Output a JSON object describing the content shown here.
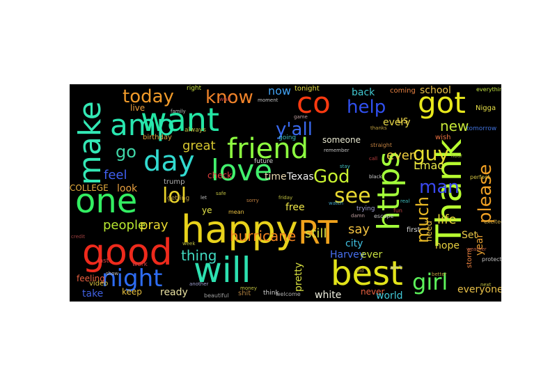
{
  "wordcloud": {
    "background": "#000000",
    "page_background": "#ffffff",
    "words": [
      {
        "text": "happy",
        "color": "#e8d21b"
      },
      {
        "text": "will",
        "color": "#2de0b0"
      },
      {
        "text": "best",
        "color": "#e2e31a"
      },
      {
        "text": "want",
        "color": "#23e6a4"
      },
      {
        "text": "love",
        "color": "#42f06d"
      },
      {
        "text": "RT",
        "color": "#f0a21c"
      },
      {
        "text": "https",
        "color": "#a3ff3a"
      },
      {
        "text": "Thank",
        "color": "#b8ff30"
      },
      {
        "text": "friend",
        "color": "#8dff40"
      },
      {
        "text": "good",
        "color": "#ee2a1c"
      },
      {
        "text": "one",
        "color": "#33ee62"
      },
      {
        "text": "amp",
        "color": "#29e6b0"
      },
      {
        "text": "make",
        "color": "#33e8b5"
      },
      {
        "text": "day",
        "color": "#32dad0"
      },
      {
        "text": "co",
        "color": "#ff3a10"
      },
      {
        "text": "got",
        "color": "#e8e81c"
      },
      {
        "text": "night",
        "color": "#2e6cf2"
      },
      {
        "text": "help",
        "color": "#3050f0"
      },
      {
        "text": "girl",
        "color": "#5cf25a"
      },
      {
        "text": "know",
        "color": "#f0832a"
      },
      {
        "text": "today",
        "color": "#f09a2a"
      },
      {
        "text": "lol",
        "color": "#e8d22a"
      },
      {
        "text": "see",
        "color": "#e8d830"
      },
      {
        "text": "God",
        "color": "#c8f230"
      },
      {
        "text": "man",
        "color": "#3a48f0"
      },
      {
        "text": "please",
        "color": "#f0a024"
      },
      {
        "text": "hurricane",
        "color": "#f08220"
      },
      {
        "text": "much",
        "color": "#e8b824"
      },
      {
        "text": "y'all",
        "color": "#3a6af0"
      },
      {
        "text": "guy",
        "color": "#e8e030"
      },
      {
        "text": "go",
        "color": "#40d8a8"
      },
      {
        "text": "new",
        "color": "#c8e838"
      },
      {
        "text": "great",
        "color": "#d8c830"
      },
      {
        "text": "people",
        "color": "#b8e830"
      },
      {
        "text": "pray",
        "color": "#e8d830"
      },
      {
        "text": "thing",
        "color": "#40d8c0"
      },
      {
        "text": "feel",
        "color": "#4060f0"
      },
      {
        "text": "life",
        "color": "#e8d838"
      },
      {
        "text": "still",
        "color": "#d8e040"
      },
      {
        "text": "even",
        "color": "#f0d040"
      },
      {
        "text": "Lmao",
        "color": "#e8e848"
      },
      {
        "text": "say",
        "color": "#f0c040"
      },
      {
        "text": "year",
        "color": "#e8a030"
      },
      {
        "text": "now",
        "color": "#40a0f0"
      },
      {
        "text": "Harvey",
        "color": "#4870f0"
      },
      {
        "text": "city",
        "color": "#40c0e0"
      },
      {
        "text": "ever",
        "color": "#c8e040"
      },
      {
        "text": "pretty",
        "color": "#d8e040"
      },
      {
        "text": "hope",
        "color": "#e8d040"
      },
      {
        "text": "need",
        "color": "#e8c040"
      },
      {
        "text": "Set",
        "color": "#e8c848"
      },
      {
        "text": "every",
        "color": "#e8d848"
      },
      {
        "text": "someone",
        "color": "#e8e8d0"
      },
      {
        "text": "back",
        "color": "#40c8d0"
      },
      {
        "text": "time",
        "color": "#e8d8b0"
      },
      {
        "text": "Texas",
        "color": "#f0f0f0"
      },
      {
        "text": "free",
        "color": "#f0e848"
      },
      {
        "text": "take",
        "color": "#4060e0"
      },
      {
        "text": "keep",
        "color": "#e8c040"
      },
      {
        "text": "ready",
        "color": "#e8e0a0"
      },
      {
        "text": "white",
        "color": "#f0f0e0"
      },
      {
        "text": "never",
        "color": "#e86040"
      },
      {
        "text": "world",
        "color": "#40c8d8"
      },
      {
        "text": "everyone",
        "color": "#e8c048"
      },
      {
        "text": "look",
        "color": "#e8a040"
      },
      {
        "text": "COLLEGE",
        "color": "#e8b040"
      },
      {
        "text": "school",
        "color": "#e8c048"
      },
      {
        "text": "coming",
        "color": "#e88040"
      },
      {
        "text": "us",
        "color": "#e8d048"
      },
      {
        "text": "live",
        "color": "#f0a040"
      },
      {
        "text": "tonight",
        "color": "#e8e048"
      },
      {
        "text": "birthday",
        "color": "#d8a040"
      },
      {
        "text": "feeling",
        "color": "#e86040"
      },
      {
        "text": "video",
        "color": "#d8c040"
      },
      {
        "text": "trump",
        "color": "#b0b0b0"
      },
      {
        "text": "ye",
        "color": "#e8e848"
      },
      {
        "text": "check",
        "color": "#e84040"
      },
      {
        "text": "first",
        "color": "#d8d8d8"
      },
      {
        "text": "Nigga",
        "color": "#e8e048"
      },
      {
        "text": "tomorrow",
        "color": "#4070d8"
      },
      {
        "text": "wish",
        "color": "#e87040"
      },
      {
        "text": "future",
        "color": "#d8d8d8"
      },
      {
        "text": "right",
        "color": "#c8e040"
      },
      {
        "text": "storm",
        "color": "#e88040"
      },
      {
        "text": "last",
        "color": "#e84040"
      },
      {
        "text": "work",
        "color": "#c84040"
      },
      {
        "text": "shit",
        "color": "#b08040"
      },
      {
        "text": "think",
        "color": "#d0d0d0"
      },
      {
        "text": "trying",
        "color": "#a0a0d0"
      },
      {
        "text": "getting",
        "color": "#c0a040"
      },
      {
        "text": "always",
        "color": "#c0c040"
      },
      {
        "text": "everything",
        "color": "#c0e040"
      },
      {
        "text": "beautiful",
        "color": "#a0a0a0"
      },
      {
        "text": "welcome",
        "color": "#b0b0b0"
      },
      {
        "text": "ain't",
        "color": "#c0c0c0"
      },
      {
        "text": "mean",
        "color": "#e8c040"
      },
      {
        "text": "protect",
        "color": "#c0c0c0"
      },
      {
        "text": "straight",
        "color": "#c08040"
      },
      {
        "text": "perfect",
        "color": "#d0c040"
      },
      {
        "text": "going",
        "color": "#40c0c0"
      },
      {
        "text": "excited",
        "color": "#c0a040"
      },
      {
        "text": "wait",
        "color": "#c04040"
      },
      {
        "text": "black",
        "color": "#d0d0d0"
      },
      {
        "text": "fun",
        "color": "#c04040"
      },
      {
        "text": "weather",
        "color": "#c06040"
      },
      {
        "text": "escape",
        "color": "#c0c0c0"
      },
      {
        "text": "another",
        "color": "#a0a0d0"
      },
      {
        "text": "credit",
        "color": "#a04040"
      },
      {
        "text": "family",
        "color": "#c0c0c0"
      },
      {
        "text": "moment",
        "color": "#c0c0c0"
      },
      {
        "text": "remember",
        "color": "#c0c0c0"
      },
      {
        "text": "friday",
        "color": "#c0c040"
      },
      {
        "text": "thanks",
        "color": "#c0a040"
      },
      {
        "text": "sorry",
        "color": "#c08040"
      },
      {
        "text": "stay",
        "color": "#40c0c0"
      },
      {
        "text": "safe",
        "color": "#c0c040"
      },
      {
        "text": "show",
        "color": "#c0c0c0"
      },
      {
        "text": "hour",
        "color": "#a0c040"
      },
      {
        "text": "game",
        "color": "#c0a0a0"
      },
      {
        "text": "call",
        "color": "#c04040"
      },
      {
        "text": "next",
        "color": "#c0c040"
      },
      {
        "text": "better",
        "color": "#c0a040"
      },
      {
        "text": "watch",
        "color": "#40a0c0"
      },
      {
        "text": "money",
        "color": "#c0c040"
      },
      {
        "text": "damn",
        "color": "#c0a0a0"
      },
      {
        "text": "week",
        "color": "#c0c040"
      },
      {
        "text": "let",
        "color": "#c0c0c0"
      },
      {
        "text": "old",
        "color": "#c0a040"
      },
      {
        "text": "real",
        "color": "#40c0c0"
      }
    ]
  }
}
